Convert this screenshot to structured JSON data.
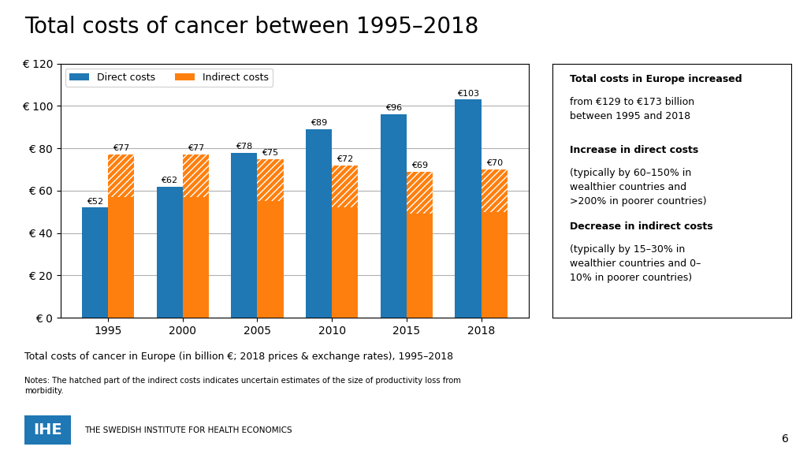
{
  "chart_data": {
    "type": "bar",
    "title": "Total costs of cancer between 1995–2018",
    "categories": [
      "1995",
      "2000",
      "2005",
      "2010",
      "2015",
      "2018"
    ],
    "series": [
      {
        "name": "Direct costs",
        "values": [
          52,
          62,
          78,
          89,
          96,
          103
        ],
        "value_labels": [
          "€52",
          "€62",
          "€78",
          "€89",
          "€96",
          "€103"
        ]
      },
      {
        "name": "Indirect costs",
        "values": [
          77,
          77,
          75,
          72,
          69,
          70
        ],
        "value_labels": [
          "€77",
          "€77",
          "€75",
          "€72",
          "€69",
          "€70"
        ],
        "hatched_height": 20
      }
    ],
    "ylim": [
      0,
      120
    ],
    "yticks": [
      {
        "value": 0,
        "label": "€ 0"
      },
      {
        "value": 20,
        "label": "€ 20"
      },
      {
        "value": 40,
        "label": "€ 40"
      },
      {
        "value": 60,
        "label": "€ 60"
      },
      {
        "value": 80,
        "label": "€ 80"
      },
      {
        "value": 100,
        "label": "€ 100"
      },
      {
        "value": 120,
        "label": "€ 120"
      }
    ],
    "grid": true,
    "legend": "upper left",
    "data_labels": true,
    "caption": "Total costs of cancer in Europe (in billion €; 2018 prices & exchange rates), 1995–2018",
    "notes": "Notes: The hatched part of the indirect costs indicates uncertain estimates of the size of productivity loss from\nmorbidity.",
    "sidebar": [
      {
        "heading": "Total costs in Europe increased",
        "text": "from €129 to €173 billion\nbetween 1995 and 2018"
      },
      {
        "heading": "Increase in direct costs",
        "text": "(typically by 60–150% in\nwealthier countries and\n>200% in poorer countries)"
      },
      {
        "heading": "Decrease in indirect costs",
        "text": "(typically by 15–30% in\nwealthier countries and 0–\n10% in poorer countries)"
      }
    ],
    "page_number": "6",
    "logo_text": "IHE",
    "organisation": "THE SWEDISH INSTITUTE FOR HEALTH ECONOMICS"
  }
}
